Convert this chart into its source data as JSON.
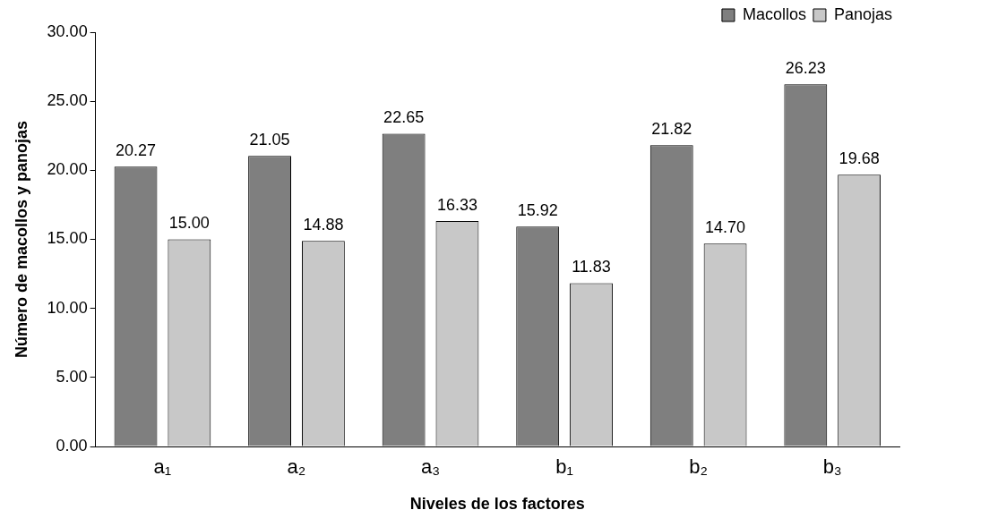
{
  "chart_data": {
    "type": "bar",
    "xlabel": "Niveles de los factores",
    "ylabel": "Número de macollos y panojas",
    "categories": [
      "a₁",
      "a₂",
      "a₃",
      "b₁",
      "b₂",
      "b₃"
    ],
    "series": [
      {
        "name": "Macollos",
        "color": "#7f7f7f",
        "values": [
          20.27,
          21.05,
          22.65,
          15.92,
          21.82,
          26.23
        ],
        "value_labels": [
          "20.27",
          "21.05",
          "22.65",
          "15.92",
          "21.82",
          "26.23"
        ]
      },
      {
        "name": "Panojas",
        "color": "#c8c8c8",
        "values": [
          15.0,
          14.88,
          16.33,
          11.83,
          14.7,
          19.68
        ],
        "value_labels": [
          "15.00",
          "14.88",
          "16.33",
          "11.83",
          "14.70",
          "19.68"
        ]
      }
    ],
    "ylim": [
      0,
      30
    ],
    "yticks": [
      {
        "value": 0,
        "label": "0.00"
      },
      {
        "value": 5,
        "label": "5.00"
      },
      {
        "value": 10,
        "label": "10.00"
      },
      {
        "value": 15,
        "label": "15.00"
      },
      {
        "value": 20,
        "label": "20.00"
      },
      {
        "value": 25,
        "label": "25.00"
      },
      {
        "value": 30,
        "label": "30.00"
      }
    ],
    "grid": false,
    "legend": "top right"
  }
}
